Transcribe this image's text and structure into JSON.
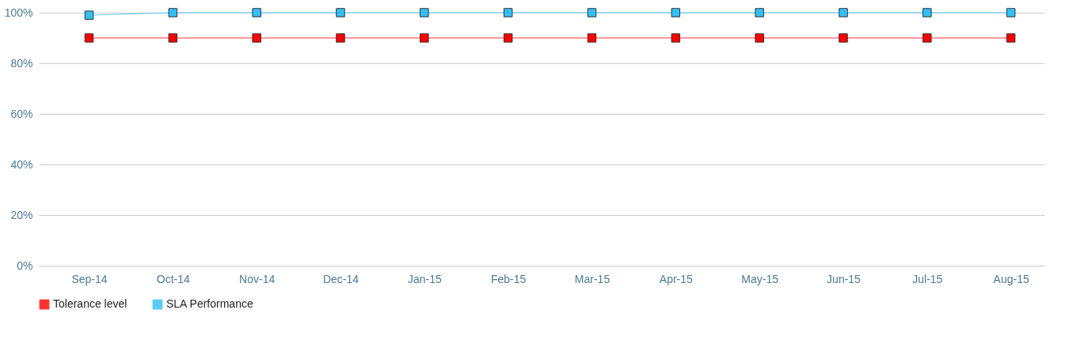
{
  "chart_data": {
    "type": "line",
    "categories": [
      "Sep-14",
      "Oct-14",
      "Nov-14",
      "Dec-14",
      "Jan-15",
      "Feb-15",
      "Mar-15",
      "Apr-15",
      "May-15",
      "Jun-15",
      "Jul-15",
      "Aug-15"
    ],
    "series": [
      {
        "name": "Tolerance level",
        "color": "#ff0000",
        "values": [
          90,
          90,
          90,
          90,
          90,
          90,
          90,
          90,
          90,
          90,
          90,
          90
        ]
      },
      {
        "name": "SLA Performance",
        "color": "#33bff5",
        "values": [
          99,
          100,
          100,
          100,
          100,
          100,
          100,
          100,
          100,
          100,
          100,
          100
        ]
      }
    ],
    "ylim": [
      0,
      100
    ],
    "yticks": [
      {
        "value": 0,
        "label": "0%"
      },
      {
        "value": 20,
        "label": "20%"
      },
      {
        "value": 40,
        "label": "40%"
      },
      {
        "value": 60,
        "label": "60%"
      },
      {
        "value": 80,
        "label": "80%"
      },
      {
        "value": 100,
        "label": "100%"
      }
    ],
    "grid": "y",
    "legend": "bottom",
    "marker": "square",
    "line_style": "solid"
  }
}
